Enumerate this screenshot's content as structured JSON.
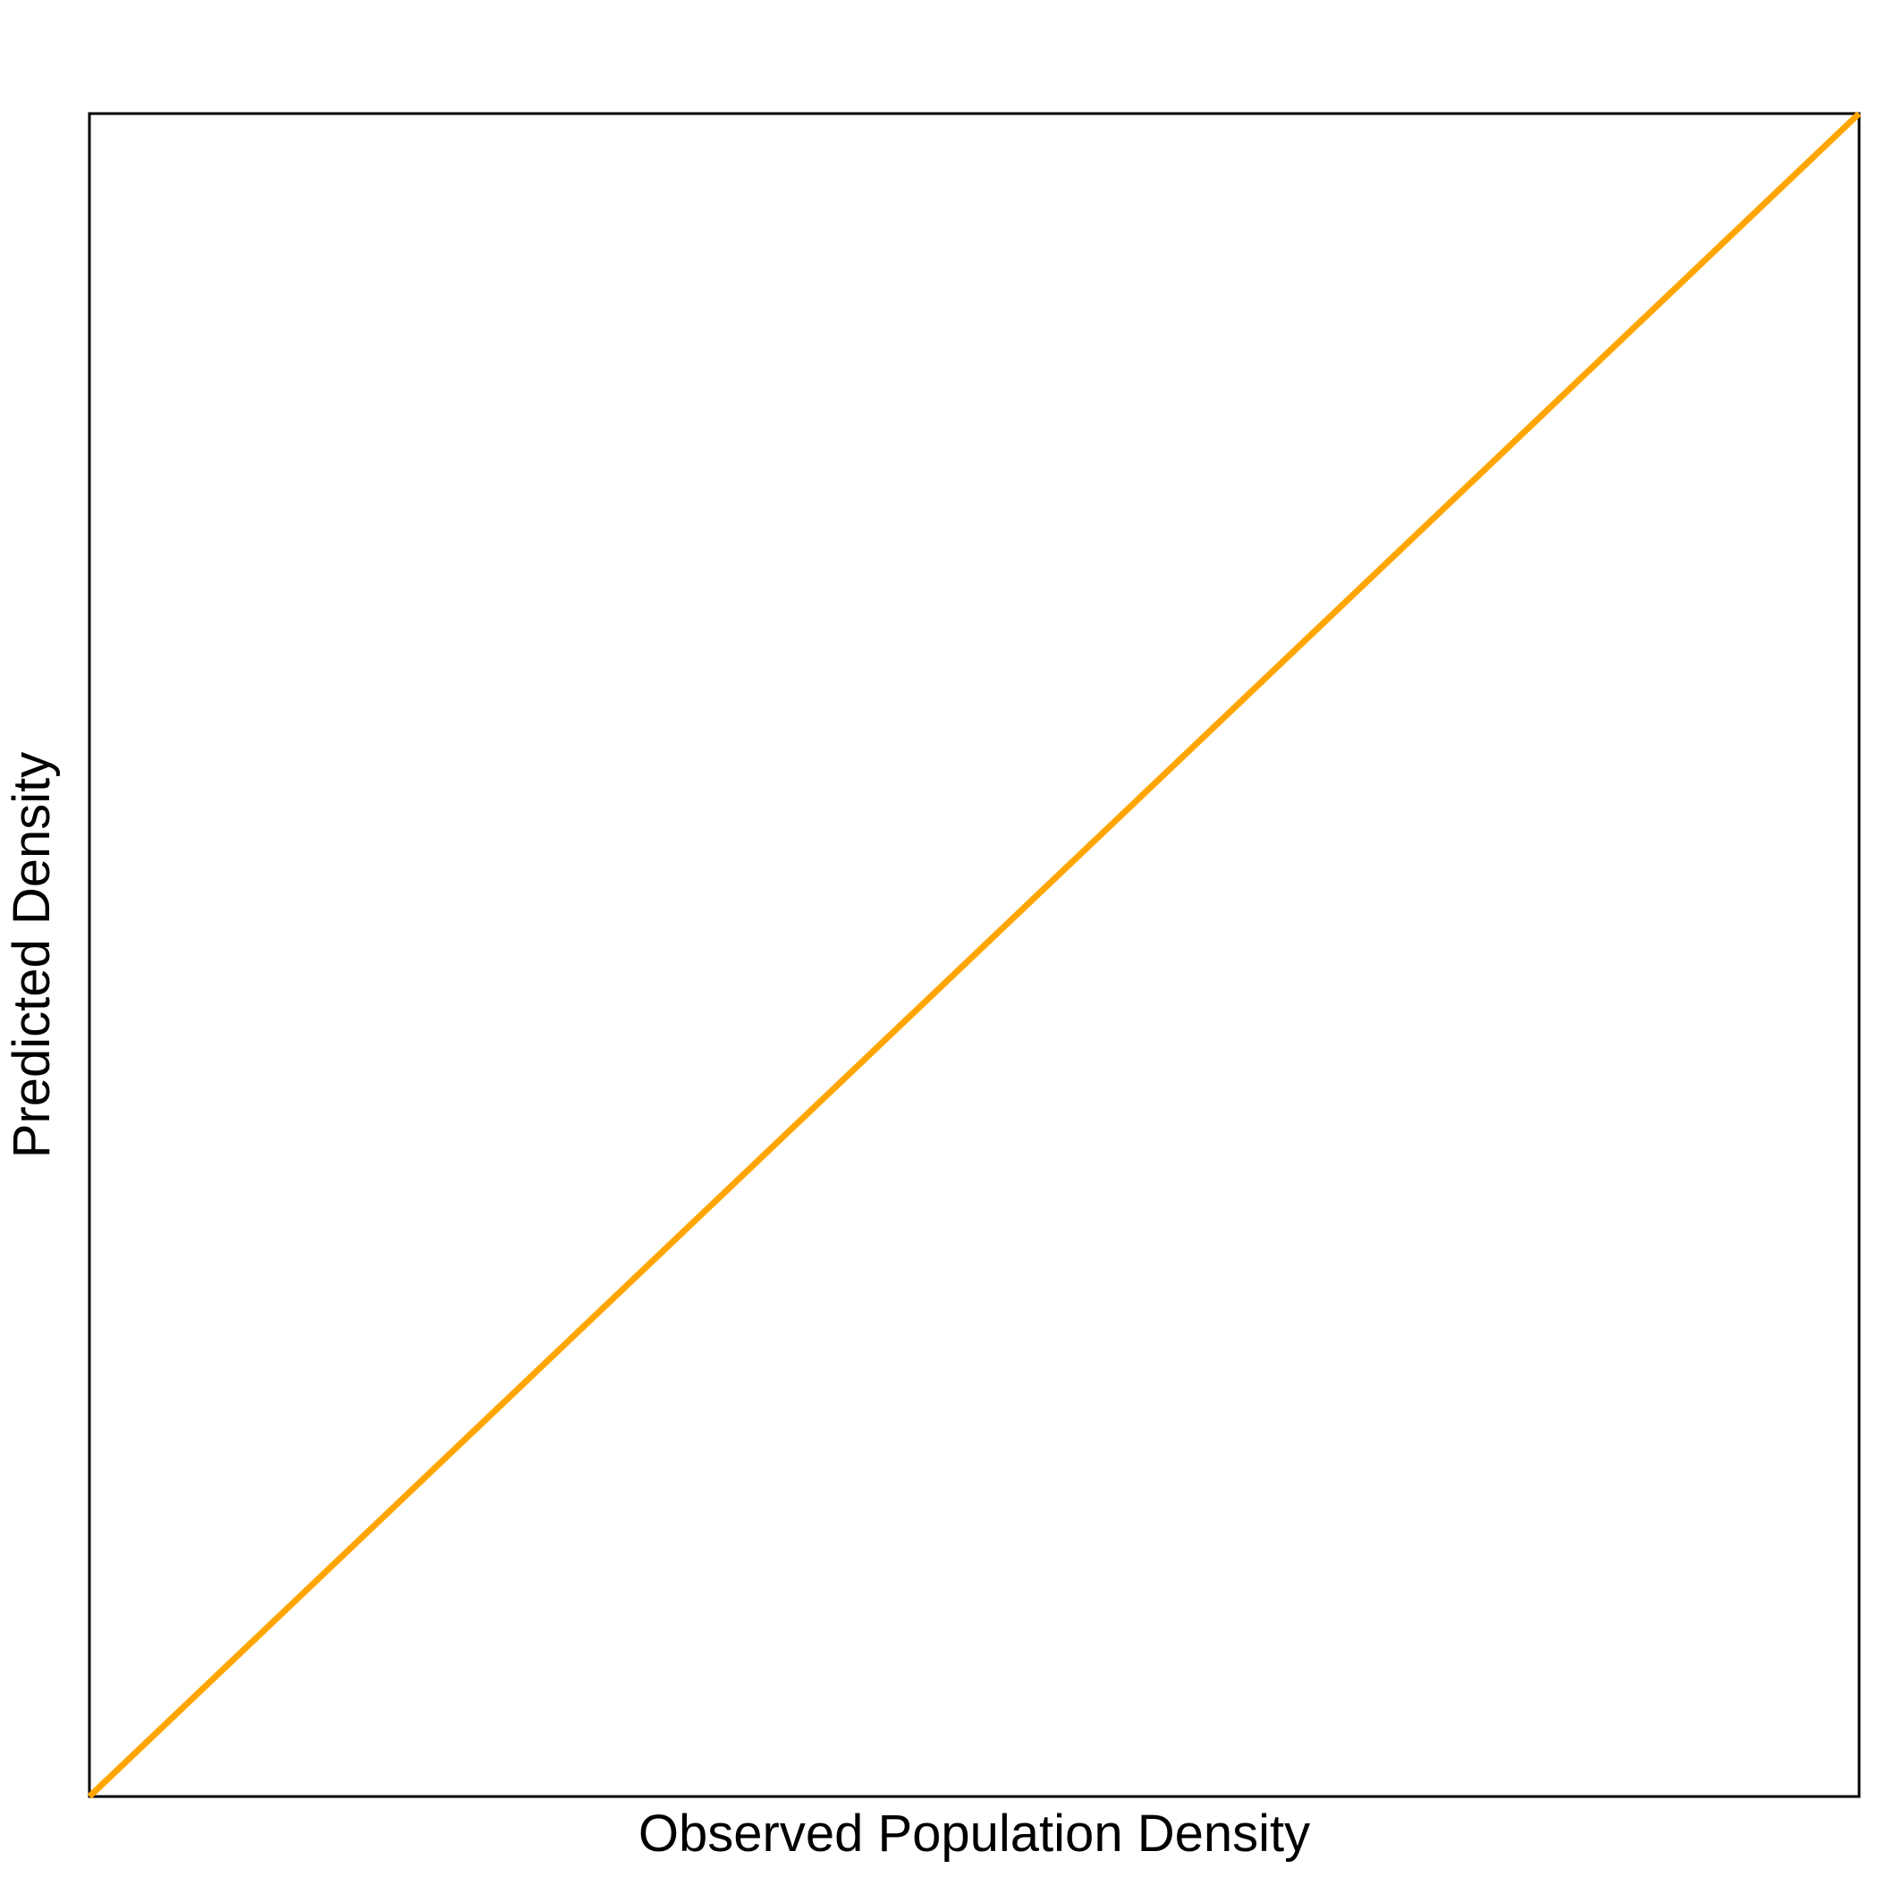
{
  "chart_data": {
    "type": "line",
    "title": "",
    "xlabel": "Observed Population Density",
    "ylabel": "Predicted Density",
    "xlim": [
      0,
      1
    ],
    "ylim": [
      0,
      1
    ],
    "grid": false,
    "ticks_shown": false,
    "series": [
      {
        "x": [
          0,
          1
        ],
        "y": [
          0,
          1
        ],
        "color": "#FFA500"
      }
    ]
  }
}
